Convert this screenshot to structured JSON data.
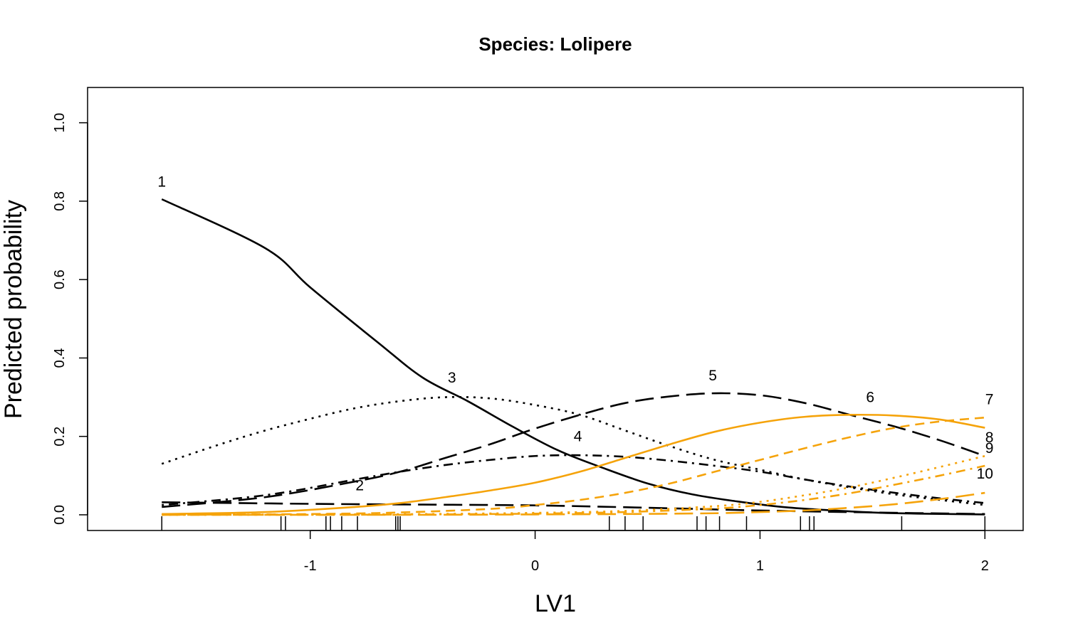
{
  "chart_data": {
    "type": "line",
    "title": "Species: Lolipere",
    "xlabel": "LV1",
    "ylabel": "Predicted probability",
    "xlim": [
      -1.99,
      2.17
    ],
    "ylim": [
      -0.04,
      1.09
    ],
    "xticks": [
      -1,
      0,
      1,
      2
    ],
    "yticks": [
      0.0,
      0.2,
      0.4,
      0.6,
      0.8,
      1.0
    ],
    "xtick_labels": [
      "-1",
      "0",
      "1",
      "2"
    ],
    "ytick_labels": [
      "0.0",
      "0.2",
      "0.4",
      "0.6",
      "0.8",
      "1.0"
    ],
    "grid": false,
    "x_range": [
      -1.66,
      2.0
    ],
    "rug": [
      -1.66,
      -1.13,
      -1.11,
      -0.93,
      -0.91,
      -0.86,
      -0.79,
      -0.62,
      -0.61,
      -0.6,
      0.33,
      0.4,
      0.48,
      0.72,
      0.76,
      0.82,
      0.94,
      1.18,
      1.22,
      1.24,
      1.63,
      2.0
    ],
    "colors": {
      "black": "#000000",
      "orange": "#F5A30A"
    },
    "series": [
      {
        "name": "1",
        "color": "#000000",
        "dash": "solid",
        "x": [
          -1.66,
          -1.2,
          -1.0,
          -0.7,
          -0.5,
          -0.3,
          -0.1,
          0.1,
          0.3,
          0.5,
          0.7,
          0.9,
          1.1,
          1.3,
          1.5,
          1.7,
          2.0
        ],
        "y": [
          0.805,
          0.68,
          0.58,
          0.44,
          0.35,
          0.29,
          0.225,
          0.165,
          0.12,
          0.08,
          0.052,
          0.034,
          0.02,
          0.012,
          0.006,
          0.003,
          0.001
        ]
      },
      {
        "name": "2",
        "color": "#000000",
        "dash": "longdash",
        "x": [
          -1.66,
          -1.0,
          -0.5,
          0.0,
          0.5,
          1.0,
          1.5,
          2.0
        ],
        "y": [
          0.032,
          0.028,
          0.026,
          0.024,
          0.018,
          0.011,
          0.006,
          0.002
        ]
      },
      {
        "name": "3",
        "color": "#000000",
        "dash": "dotted",
        "x": [
          -1.66,
          -1.4,
          -1.2,
          -1.0,
          -0.8,
          -0.6,
          -0.4,
          -0.2,
          0.0,
          0.2,
          0.4,
          0.6,
          0.8,
          1.0,
          1.2,
          1.4,
          1.6,
          1.8,
          2.0
        ],
        "y": [
          0.13,
          0.18,
          0.215,
          0.245,
          0.272,
          0.29,
          0.3,
          0.297,
          0.28,
          0.255,
          0.215,
          0.175,
          0.14,
          0.115,
          0.09,
          0.07,
          0.052,
          0.038,
          0.025
        ]
      },
      {
        "name": "4",
        "color": "#000000",
        "dash": "dotdash",
        "x": [
          -1.66,
          -1.2,
          -0.8,
          -0.6,
          -0.4,
          -0.2,
          0.0,
          0.2,
          0.4,
          0.6,
          0.8,
          1.0,
          1.2,
          1.4,
          1.6,
          1.8,
          2.0
        ],
        "y": [
          0.025,
          0.05,
          0.09,
          0.11,
          0.127,
          0.14,
          0.15,
          0.152,
          0.148,
          0.138,
          0.125,
          0.11,
          0.09,
          0.072,
          0.056,
          0.042,
          0.03
        ]
      },
      {
        "name": "5",
        "color": "#000000",
        "dash": "longdash",
        "x": [
          -1.66,
          -1.2,
          -0.8,
          -0.6,
          -0.4,
          -0.2,
          0.0,
          0.2,
          0.4,
          0.6,
          0.8,
          1.0,
          1.2,
          1.4,
          1.6,
          1.8,
          2.0
        ],
        "y": [
          0.02,
          0.045,
          0.085,
          0.11,
          0.145,
          0.18,
          0.22,
          0.255,
          0.285,
          0.302,
          0.31,
          0.305,
          0.285,
          0.255,
          0.225,
          0.19,
          0.15
        ]
      },
      {
        "name": "6",
        "color": "#F5A30A",
        "dash": "solid",
        "x": [
          -1.66,
          -1.2,
          -0.8,
          -0.6,
          -0.4,
          -0.2,
          0.0,
          0.2,
          0.4,
          0.6,
          0.8,
          1.0,
          1.2,
          1.4,
          1.6,
          1.8,
          2.0
        ],
        "y": [
          0.002,
          0.007,
          0.02,
          0.03,
          0.045,
          0.062,
          0.082,
          0.11,
          0.145,
          0.18,
          0.212,
          0.235,
          0.25,
          0.255,
          0.253,
          0.243,
          0.222
        ]
      },
      {
        "name": "7",
        "color": "#F5A30A",
        "dash": "dashed",
        "x": [
          -1.66,
          -1.0,
          -0.6,
          -0.2,
          0.0,
          0.2,
          0.4,
          0.6,
          0.8,
          1.0,
          1.2,
          1.4,
          1.6,
          1.8,
          2.0
        ],
        "y": [
          0.0,
          0.002,
          0.006,
          0.015,
          0.025,
          0.038,
          0.056,
          0.08,
          0.11,
          0.14,
          0.17,
          0.198,
          0.222,
          0.238,
          0.248
        ]
      },
      {
        "name": "8",
        "color": "#F5A30A",
        "dash": "dotted",
        "x": [
          -1.66,
          -1.0,
          -0.5,
          0.0,
          0.4,
          0.8,
          1.0,
          1.2,
          1.4,
          1.6,
          1.8,
          2.0
        ],
        "y": [
          0.0,
          0.001,
          0.002,
          0.005,
          0.01,
          0.022,
          0.033,
          0.05,
          0.07,
          0.095,
          0.122,
          0.15
        ]
      },
      {
        "name": "9",
        "color": "#F5A30A",
        "dash": "dotdash",
        "x": [
          -1.66,
          -1.0,
          -0.5,
          0.0,
          0.4,
          0.8,
          1.0,
          1.2,
          1.4,
          1.6,
          1.8,
          2.0
        ],
        "y": [
          0.0,
          0.0,
          0.001,
          0.003,
          0.007,
          0.016,
          0.025,
          0.038,
          0.055,
          0.077,
          0.1,
          0.125
        ]
      },
      {
        "name": "10",
        "color": "#F5A30A",
        "dash": "longdash",
        "x": [
          -1.66,
          -1.0,
          -0.5,
          0.0,
          0.4,
          0.8,
          1.0,
          1.2,
          1.4,
          1.6,
          1.8,
          2.0
        ],
        "y": [
          0.0,
          0.0,
          0.0,
          0.001,
          0.002,
          0.004,
          0.007,
          0.011,
          0.018,
          0.027,
          0.04,
          0.056
        ]
      }
    ],
    "annotations": [
      {
        "text": "1",
        "x": -1.66,
        "y": 0.85
      },
      {
        "text": "2",
        "x": -0.78,
        "y": 0.075
      },
      {
        "text": "3",
        "x": -0.37,
        "y": 0.35
      },
      {
        "text": "4",
        "x": 0.19,
        "y": 0.2
      },
      {
        "text": "5",
        "x": 0.79,
        "y": 0.355
      },
      {
        "text": "6",
        "x": 1.49,
        "y": 0.3
      },
      {
        "text": "7",
        "x": 2.02,
        "y": 0.295
      },
      {
        "text": "8",
        "x": 2.02,
        "y": 0.198
      },
      {
        "text": "9",
        "x": 2.02,
        "y": 0.17
      },
      {
        "text": "10",
        "x": 2.0,
        "y": 0.105
      }
    ]
  }
}
